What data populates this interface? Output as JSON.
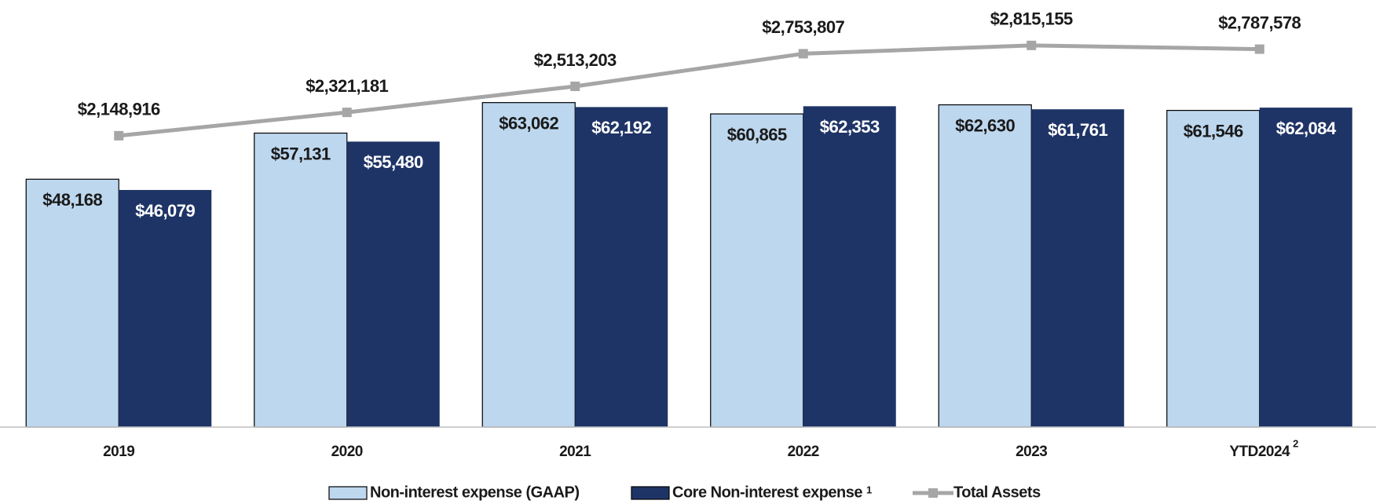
{
  "chart_data": {
    "type": "bar",
    "categories": [
      "2019",
      "2020",
      "2021",
      "2022",
      "2023",
      "YTD2024"
    ],
    "category_footnotes": [
      null,
      null,
      null,
      null,
      null,
      "2"
    ],
    "series": [
      {
        "name": "Non-interest expense (GAAP)",
        "color": "#bdd7ee",
        "values": [
          48168,
          57131,
          63062,
          60865,
          62630,
          61546
        ],
        "value_labels": [
          "$48,168",
          "$57,131",
          "$63,062",
          "$60,865",
          "$62,630",
          "$61,546"
        ]
      },
      {
        "name": "Core Non-interest expense",
        "footnote": "1",
        "color": "#1f3466",
        "values": [
          46079,
          55480,
          62192,
          62353,
          61761,
          62084
        ],
        "value_labels": [
          "$46,079",
          "$55,480",
          "$62,192",
          "$62,353",
          "$61,761",
          "$62,084"
        ]
      },
      {
        "name": "Total Assets",
        "type": "line",
        "axis": "y2",
        "color": "#a6a6a6",
        "values": [
          2148916,
          2321181,
          2513203,
          2753807,
          2815155,
          2787578
        ],
        "value_labels": [
          "$2,148,916",
          "$2,321,181",
          "$2,513,203",
          "$2,753,807",
          "$2,815,155",
          "$2,787,578"
        ]
      }
    ],
    "ylim": [
      0,
      83000
    ],
    "y2lim": [
      0,
      3150000
    ]
  }
}
